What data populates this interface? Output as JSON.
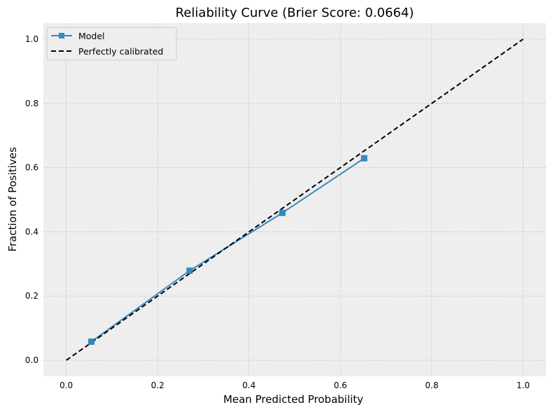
{
  "chart_data": {
    "type": "line",
    "title": "Reliability Curve (Brier Score: 0.0664)",
    "xlabel": "Mean Predicted Probability",
    "ylabel": "Fraction of Positives",
    "xlim": [
      -0.05,
      1.05
    ],
    "ylim": [
      -0.05,
      1.05
    ],
    "xticks": [
      "0.0",
      "0.2",
      "0.4",
      "0.6",
      "0.8",
      "1.0"
    ],
    "yticks": [
      "0.0",
      "0.2",
      "0.4",
      "0.6",
      "0.8",
      "1.0"
    ],
    "grid": true,
    "legend_position": "top-left",
    "series": [
      {
        "name": "Model",
        "color": "#348abd",
        "marker": "square",
        "line_style": "solid",
        "x": [
          0.055,
          0.27,
          0.473,
          0.652
        ],
        "y": [
          0.058,
          0.279,
          0.459,
          0.629
        ]
      },
      {
        "name": "Perfectly calibrated",
        "color": "#000000",
        "marker": "none",
        "line_style": "dashed",
        "x": [
          0.0,
          1.0
        ],
        "y": [
          0.0,
          1.0
        ]
      }
    ],
    "colors": {
      "plot_background": "#eeeeee",
      "grid": "#b2b2b2"
    }
  }
}
